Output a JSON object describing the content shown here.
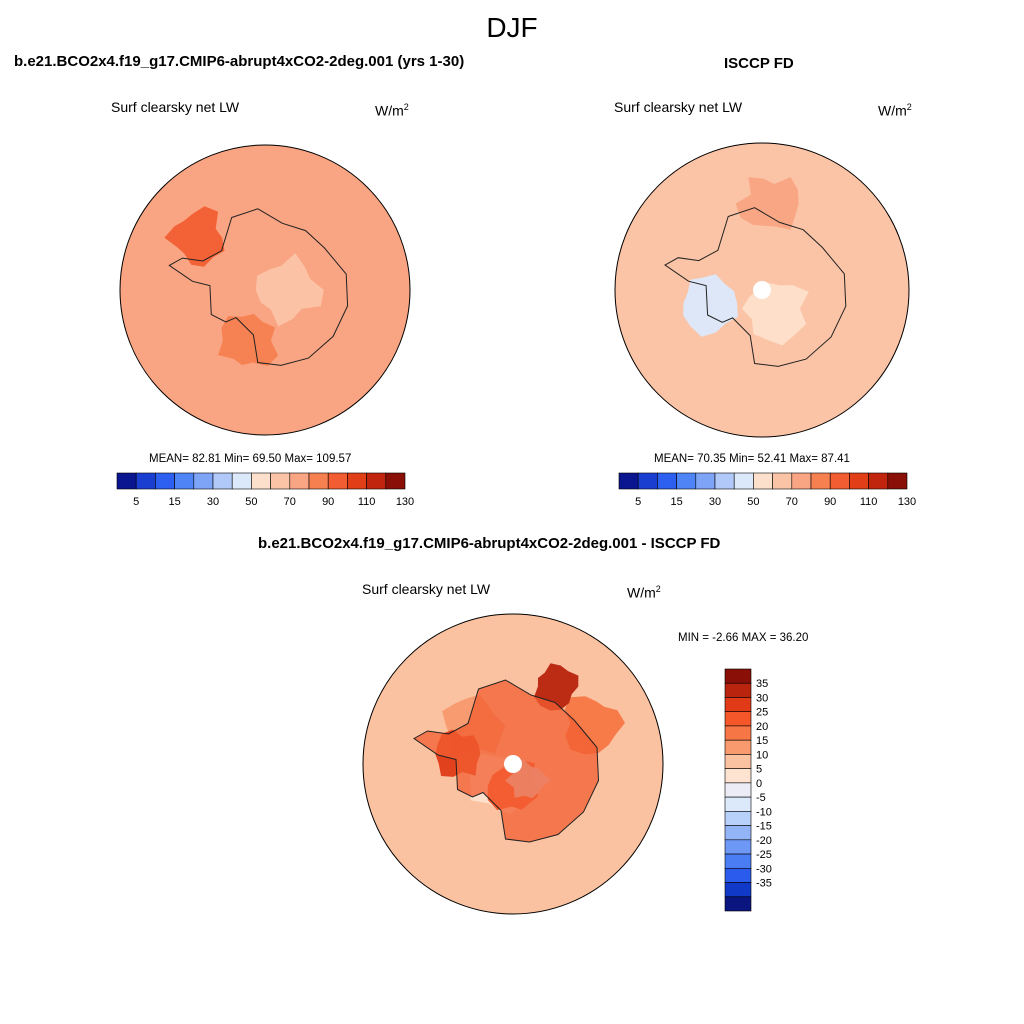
{
  "figure": {
    "season": "DJF",
    "colors": {
      "abs_scale": [
        "#0a1590",
        "#1a3fd0",
        "#2d60f0",
        "#4e84f5",
        "#7ea4f8",
        "#b0c9f9",
        "#dbe9fb",
        "#fde0cb",
        "#fbc4a6",
        "#f9a482",
        "#f68050",
        "#f25e31",
        "#e23e17",
        "#c2250d",
        "#8a0f07"
      ],
      "diff_scale": [
        "#8a0f07",
        "#b8240d",
        "#e03a16",
        "#f5562a",
        "#f77645",
        "#f8996e",
        "#fbc2a1",
        "#fde3d0",
        "#ececf6",
        "#dbe9fb",
        "#b8d1fa",
        "#93b5f8",
        "#6e98f6",
        "#4a7df3",
        "#2a5bec",
        "#1139c8",
        "#0a1580"
      ],
      "land_outline": "#222222"
    }
  },
  "panels": [
    {
      "title": "b.e21.BCO2x4.f19_g17.CMIP6-abrupt4xCO2-2deg.001 (yrs 1-30)",
      "variable": "Surf clearsky net LW",
      "units_base": "W/m",
      "units_exp": "2",
      "stats": "MEAN=  82.81  Min=  69.50  Max= 109.57",
      "field_background": "#f9a482",
      "field_regions": [
        "#fbc4a6",
        "#f68050",
        "#f25e31"
      ]
    },
    {
      "title": "ISCCP FD",
      "variable": "Surf clearsky net LW",
      "units_base": "W/m",
      "units_exp": "2",
      "stats": "MEAN=  70.35  Min=  52.41  Max=  87.41",
      "field_background": "#fbc4a6",
      "field_regions": [
        "#fde0cb",
        "#dbe9fb",
        "#f9a482"
      ]
    },
    {
      "title": "b.e21.BCO2x4.f19_g17.CMIP6-abrupt4xCO2-2deg.001 - ISCCP FD",
      "variable": "Surf clearsky net LW",
      "units_base": "W/m",
      "units_exp": "2",
      "stats": "MIN =  -2.66 MAX =  36.20",
      "field_background": "#fbc2a1",
      "field_regions": [
        "#fde3d0",
        "#f8996e",
        "#f77645",
        "#f5562a",
        "#e03a16",
        "#b8240d",
        "#dbe9fb"
      ]
    }
  ],
  "chart_data": [
    {
      "type": "heatmap",
      "title": "b.e21.BCO2x4.f19_g17.CMIP6-abrupt4xCO2-2deg.001 (yrs 1-30)",
      "subtitle": "Surf clearsky net LW",
      "units": "W/m2",
      "projection": "south polar stereographic",
      "mean": 82.81,
      "min": 69.5,
      "max": 109.57,
      "colorbar_ticks": [
        "5",
        "15",
        "30",
        "50",
        "70",
        "90",
        "110",
        "130"
      ],
      "colorbar_levels": [
        5,
        10,
        15,
        20,
        30,
        40,
        50,
        60,
        70,
        80,
        90,
        100,
        110,
        120,
        130
      ]
    },
    {
      "type": "heatmap",
      "title": "ISCCP FD",
      "subtitle": "Surf clearsky net LW",
      "units": "W/m2",
      "projection": "south polar stereographic",
      "mean": 70.35,
      "min": 52.41,
      "max": 87.41,
      "colorbar_ticks": [
        "5",
        "15",
        "30",
        "50",
        "70",
        "90",
        "110",
        "130"
      ],
      "colorbar_levels": [
        5,
        10,
        15,
        20,
        30,
        40,
        50,
        60,
        70,
        80,
        90,
        100,
        110,
        120,
        130
      ]
    },
    {
      "type": "heatmap",
      "title": "b.e21.BCO2x4.f19_g17.CMIP6-abrupt4xCO2-2deg.001 - ISCCP FD",
      "subtitle": "Surf clearsky net LW",
      "units": "W/m2",
      "projection": "south polar stereographic",
      "min": -2.66,
      "max": 36.2,
      "colorbar_ticks": [
        "35",
        "30",
        "25",
        "20",
        "15",
        "10",
        "5",
        "0",
        "-5",
        "-10",
        "-15",
        "-20",
        "-25",
        "-30",
        "-35"
      ],
      "colorbar_levels": [
        35,
        30,
        25,
        20,
        15,
        10,
        5,
        0,
        -5,
        -10,
        -15,
        -20,
        -25,
        -30,
        -35
      ]
    }
  ]
}
